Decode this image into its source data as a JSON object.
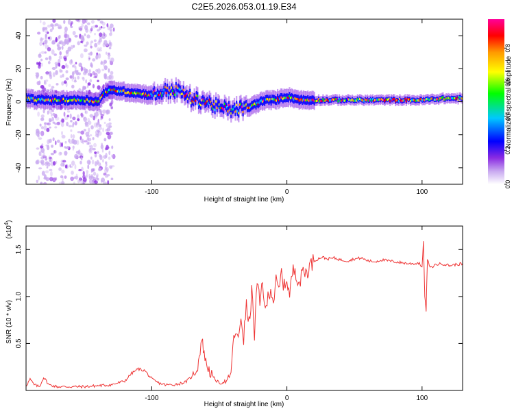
{
  "title": "C2E5.2026.053.01.19.E34",
  "chart_data": [
    {
      "type": "heatmap",
      "title": "C2E5.2026.053.01.19.E34",
      "xlabel": "Height of straight line (km)",
      "ylabel": "Frequency (Hz)",
      "xlim": [
        -193,
        130
      ],
      "ylim": [
        -50,
        50
      ],
      "x_ticks": [
        -100,
        0,
        100
      ],
      "x_tick_labels": [
        "-100",
        "0",
        "100"
      ],
      "y_ticks": [
        -40,
        -20,
        0,
        20,
        40
      ],
      "y_tick_labels": [
        "-40",
        "-20",
        "0",
        "20",
        "40"
      ],
      "colorbar": {
        "label": "Normalized spectral amplitude",
        "range": [
          0,
          0.97
        ],
        "ticks": [
          0.0,
          0.2,
          0.4,
          0.6,
          0.8
        ],
        "tick_labels": [
          "0.0",
          "0.2",
          "0.4",
          "0.6",
          "0.8"
        ],
        "colors": [
          "#ffffff",
          "#8a2be2",
          "#0000ff",
          "#00c8ff",
          "#00ff00",
          "#ffff00",
          "#ff9900",
          "#ff0000",
          "#ff0099"
        ]
      },
      "ridge": {
        "x": [
          -193,
          -185,
          -170,
          -150,
          -140,
          -135,
          -128,
          -120,
          -110,
          -100,
          -92,
          -85,
          -80,
          -75,
          -70,
          -65,
          -60,
          -55,
          -50,
          -45,
          -40,
          -35,
          -30,
          -25,
          -20,
          -15,
          -10,
          -5,
          0,
          5,
          10,
          20,
          40,
          60,
          80,
          100,
          115,
          130
        ],
        "freq_hz": [
          2,
          1,
          1,
          1,
          0,
          6,
          7,
          6,
          5,
          4,
          6,
          7,
          6,
          4,
          1,
          1,
          0,
          -2,
          -4,
          -4,
          -5,
          -4,
          -4,
          -2,
          0,
          1,
          1,
          2,
          3,
          2,
          1,
          1,
          1,
          1,
          1,
          1,
          2,
          2
        ]
      },
      "noise_band_x": [
        -185,
        -128
      ]
    },
    {
      "type": "line",
      "xlabel": "Height of straight line (km)",
      "ylabel": "SNR (10 * v/v)",
      "y_scale_label": "(x10",
      "y_scale_exponent": "4",
      "color": "#ee3333",
      "xlim": [
        -193,
        130
      ],
      "ylim": [
        0,
        1.75
      ],
      "x_ticks": [
        -100,
        0,
        100
      ],
      "x_tick_labels": [
        "-100",
        "0",
        "100"
      ],
      "y_ticks": [
        0.5,
        1.0,
        1.5
      ],
      "y_tick_labels": [
        "0.5",
        "1.0",
        "1.5"
      ],
      "series": [
        {
          "name": "SNR",
          "x": [
            -193,
            -190,
            -187,
            -183,
            -180,
            -176,
            -170,
            -160,
            -150,
            -140,
            -130,
            -120,
            -115,
            -110,
            -105,
            -100,
            -95,
            -90,
            -85,
            -80,
            -75,
            -70,
            -66,
            -63,
            -60,
            -57,
            -55,
            -52,
            -50,
            -48,
            -46,
            -44,
            -42,
            -40,
            -38,
            -36,
            -34,
            -32,
            -30,
            -28,
            -26,
            -24,
            -22,
            -20,
            -18,
            -16,
            -14,
            -12,
            -10,
            -8,
            -6,
            -4,
            -2,
            0,
            2,
            4,
            6,
            8,
            10,
            12,
            14,
            16,
            18,
            20,
            23,
            26,
            30,
            35,
            40,
            45,
            50,
            55,
            60,
            65,
            70,
            75,
            80,
            85,
            90,
            95,
            98,
            100,
            101,
            102,
            103,
            104,
            106,
            110,
            115,
            120,
            125,
            130
          ],
          "values": [
            0.05,
            0.12,
            0.06,
            0.04,
            0.14,
            0.06,
            0.04,
            0.04,
            0.04,
            0.05,
            0.06,
            0.1,
            0.18,
            0.23,
            0.21,
            0.12,
            0.08,
            0.06,
            0.06,
            0.07,
            0.09,
            0.15,
            0.25,
            0.55,
            0.3,
            0.2,
            0.15,
            0.1,
            0.08,
            0.08,
            0.1,
            0.06,
            0.12,
            0.45,
            0.65,
            0.5,
            0.8,
            0.55,
            0.9,
            0.7,
            1.05,
            0.6,
            1.15,
            0.9,
            1.2,
            0.8,
            1.0,
            1.1,
            0.95,
            1.15,
            1.05,
            1.25,
            1.1,
            1.2,
            1.0,
            1.25,
            1.3,
            1.2,
            1.15,
            1.3,
            1.25,
            1.3,
            1.35,
            1.38,
            1.4,
            1.42,
            1.4,
            1.41,
            1.39,
            1.38,
            1.4,
            1.41,
            1.38,
            1.37,
            1.39,
            1.38,
            1.37,
            1.36,
            1.35,
            1.35,
            1.36,
            1.3,
            1.6,
            1.0,
            0.85,
            1.4,
            1.3,
            1.34,
            1.35,
            1.33,
            1.34,
            1.35
          ]
        }
      ]
    }
  ]
}
